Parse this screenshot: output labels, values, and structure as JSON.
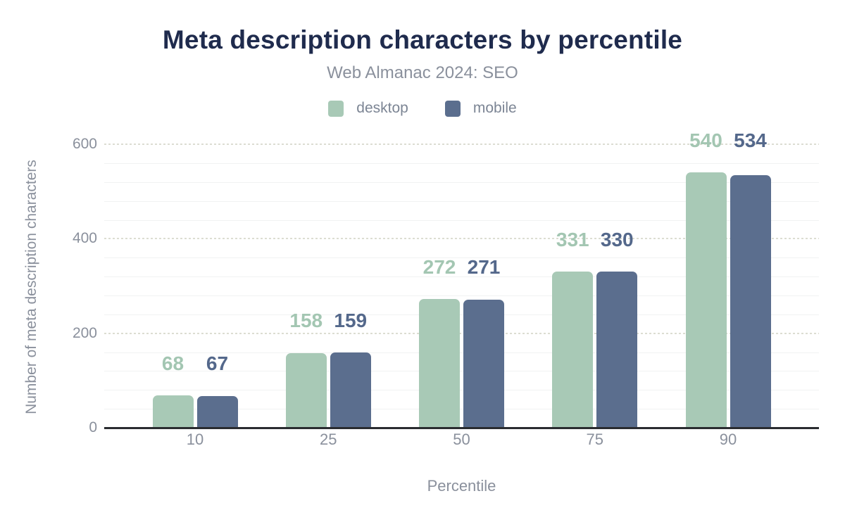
{
  "chart_data": {
    "type": "bar",
    "title": "Meta description characters by percentile",
    "subtitle": "Web Almanac 2024: SEO",
    "categories": [
      "10",
      "25",
      "50",
      "75",
      "90"
    ],
    "series": [
      {
        "name": "desktop",
        "color": "#a8c9b6",
        "label_color": "#a3c6b2",
        "values": [
          68,
          158,
          272,
          331,
          540
        ]
      },
      {
        "name": "mobile",
        "color": "#5b6e8e",
        "label_color": "#54688b",
        "values": [
          67,
          159,
          271,
          330,
          534
        ]
      }
    ],
    "xlabel": "Percentile",
    "ylabel": "Number of meta description characters",
    "ylim": [
      0,
      600
    ],
    "yticks": [
      0,
      200,
      400,
      600
    ],
    "minor_grid_step": 40,
    "grid": true,
    "legend_position": "top",
    "bar_labels": true
  },
  "colors": {
    "title_text": "#1f2b4d",
    "muted_text": "#8a909c",
    "axis_line": "#2a2c30",
    "grid_minor": "#f1f2f2",
    "grid_major": "#dcddd2"
  }
}
